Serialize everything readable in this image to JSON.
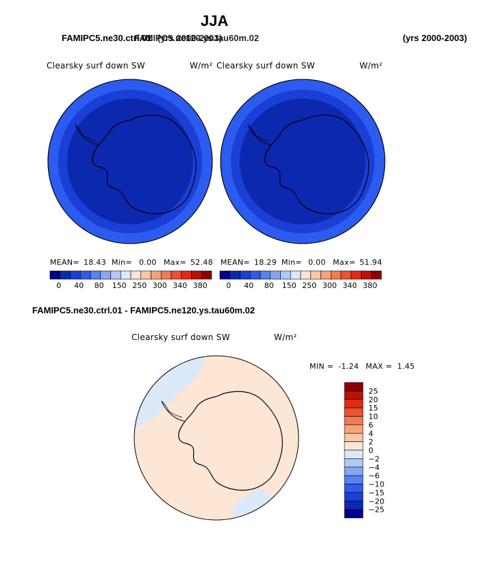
{
  "header": {
    "season": "JJA",
    "case_left": "FAMIPC5.ne30.ctrl.01",
    "case_left_years": "(yrs 2000-2003)",
    "case_right": "FAMIPC5.ne120.ys.tau60m.02",
    "case_right_years": "(yrs 2000-2003)"
  },
  "panel1": {
    "variable": "Clearsky surf down SW",
    "units": "W/m²",
    "mean_label": "MEAN=",
    "mean": "18.43",
    "min_label": "Min=",
    "min": "0.00",
    "max_label": "Max=",
    "max": "52.48"
  },
  "panel2": {
    "variable": "Clearsky surf down SW",
    "units": "W/m²",
    "mean_label": "MEAN=",
    "mean": "18.29",
    "min_label": "Min=",
    "min": "0.00",
    "max_label": "Max=",
    "max": "51.94"
  },
  "diff": {
    "title": "FAMIPC5.ne30.ctrl.01 - FAMIPC5.ne120.ys.tau60m.02",
    "variable": "Clearsky surf down SW",
    "units": "W/m²",
    "min_label": "MIN =",
    "min": "-1.24",
    "max_label": "MAX =",
    "max": "1.45"
  },
  "colorbar_top": {
    "colors": [
      "#00008f",
      "#0a2aae",
      "#1c3fd6",
      "#2e5cf0",
      "#5880f0",
      "#86a6f2",
      "#b2c8f6",
      "#dbe9fb",
      "#fde6d3",
      "#f9c6a8",
      "#f6a27d",
      "#f27a55",
      "#ed5231",
      "#e12a13",
      "#b81209",
      "#8a0000"
    ],
    "labels": [
      "0",
      "40",
      "80",
      "150",
      "250",
      "300",
      "340",
      "380"
    ]
  },
  "colorbar_diff": {
    "colors": [
      "#8a0000",
      "#b81209",
      "#e12a13",
      "#ed5231",
      "#f27a55",
      "#f6a27d",
      "#f9c6a8",
      "#fde6d3",
      "#dbe9fb",
      "#b2c8f6",
      "#86a6f2",
      "#5880f0",
      "#2e5cf0",
      "#1c3fd6",
      "#0a2aae",
      "#00008f"
    ],
    "labels": [
      "25",
      "20",
      "15",
      "10",
      "6",
      "4",
      "2",
      "0",
      "-2",
      "-4",
      "-6",
      "-10",
      "-15",
      "-20",
      "-25"
    ]
  },
  "map_colors": {
    "outer_ring": "#2b5cef",
    "middle_ring": "#1a3fd6",
    "inner_disk": "#0c28ae",
    "diff_background": "#fde6d3",
    "diff_negative": "#dbe9fb"
  }
}
